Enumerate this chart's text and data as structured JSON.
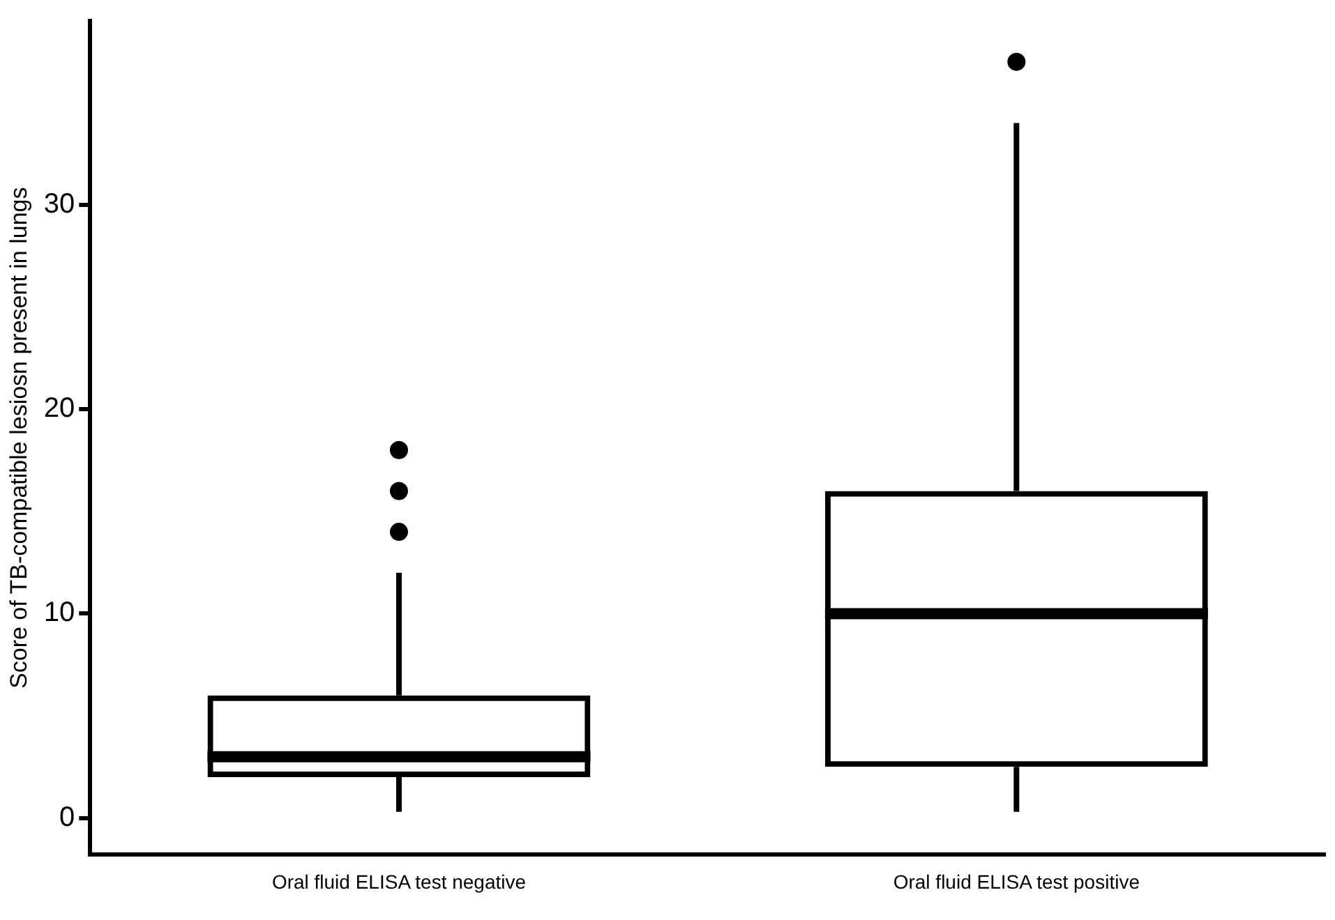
{
  "chart_data": {
    "type": "box",
    "ylabel": "Score of TB-compatible lesiosn present in lungs",
    "categories": [
      "Oral fluid ELISA test negative",
      "Oral fluid ELISA test positive"
    ],
    "color": "#000000",
    "boxes": [
      {
        "low": 0.3,
        "q1": 2,
        "median": 3,
        "q3": 6,
        "high": 12,
        "outliers": [
          14,
          16,
          18
        ]
      },
      {
        "low": 0.3,
        "q1": 2.5,
        "median": 10,
        "q3": 16,
        "high": 34,
        "outliers": [
          37
        ]
      }
    ],
    "ylim": [
      -1.8,
      39
    ],
    "yticks": [
      0,
      10,
      20,
      30
    ],
    "grid": false,
    "legend": false,
    "marker": "circle"
  }
}
